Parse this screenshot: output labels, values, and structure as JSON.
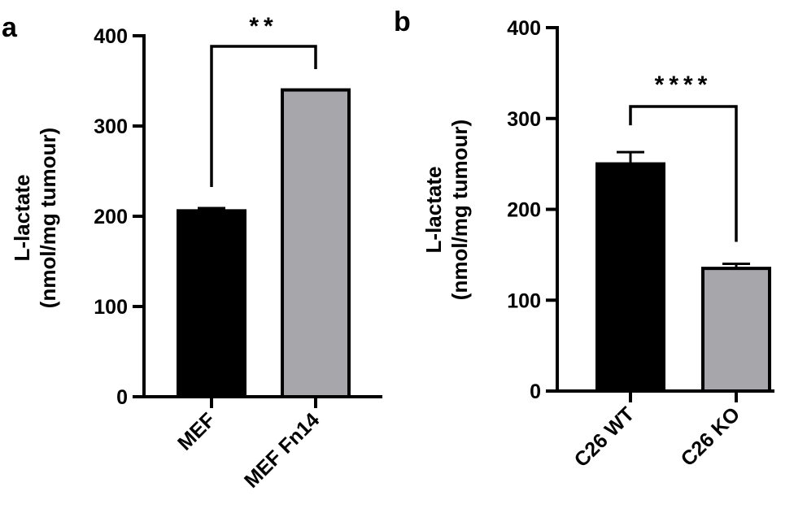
{
  "chart_data": [
    {
      "type": "bar",
      "panel_label": "a",
      "categories": [
        "MEF",
        "MEF Fn14"
      ],
      "values": [
        206,
        340
      ],
      "errors": [
        3,
        0
      ],
      "colors": [
        "#000000",
        "#a6a6ab"
      ],
      "ylabel_line1": "L-lactate",
      "ylabel_line2": "(nmol/mg tumour)",
      "ylim": [
        0,
        400
      ],
      "yticks": [
        0,
        100,
        200,
        300,
        400
      ],
      "significance": {
        "text": "**",
        "between": [
          0,
          1
        ]
      },
      "grid": false
    },
    {
      "type": "bar",
      "panel_label": "b",
      "categories": [
        "C26 WT",
        "C26 KO"
      ],
      "values": [
        250,
        135
      ],
      "errors": [
        13,
        5
      ],
      "colors": [
        "#000000",
        "#a6a6ab"
      ],
      "ylabel_line1": "L-lactate",
      "ylabel_line2": "(nmol/mg tumour)",
      "ylim": [
        0,
        400
      ],
      "yticks": [
        0,
        100,
        200,
        300,
        400
      ],
      "significance": {
        "text": "****",
        "between": [
          0,
          1
        ]
      },
      "grid": false
    }
  ]
}
